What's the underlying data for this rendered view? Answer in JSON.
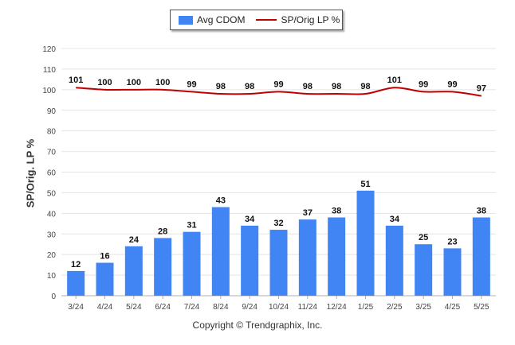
{
  "chart_data": {
    "type": "bar",
    "categories": [
      "3/24",
      "4/24",
      "5/24",
      "6/24",
      "7/24",
      "8/24",
      "9/24",
      "10/24",
      "11/24",
      "12/24",
      "1/25",
      "2/25",
      "3/25",
      "4/25",
      "5/25"
    ],
    "series": [
      {
        "name": "Avg CDOM",
        "type": "bar",
        "color": "#4184f3",
        "values": [
          12,
          16,
          24,
          28,
          31,
          43,
          34,
          32,
          37,
          38,
          51,
          34,
          25,
          23,
          38
        ]
      },
      {
        "name": "SP/Orig LP %",
        "type": "line",
        "color": "#c00000",
        "values": [
          101,
          100,
          100,
          100,
          99,
          98,
          98,
          99,
          98,
          98,
          98,
          101,
          99,
          99,
          97
        ]
      }
    ],
    "ylabel": "SP/Orig. LP %",
    "xlabel": "",
    "ylim": [
      0,
      120
    ],
    "yticks": [
      0,
      10,
      20,
      30,
      40,
      50,
      60,
      70,
      80,
      90,
      100,
      110,
      120
    ],
    "grid": true,
    "legend_position": "top-center"
  },
  "footer": "Copyright © Trendgraphix, Inc."
}
